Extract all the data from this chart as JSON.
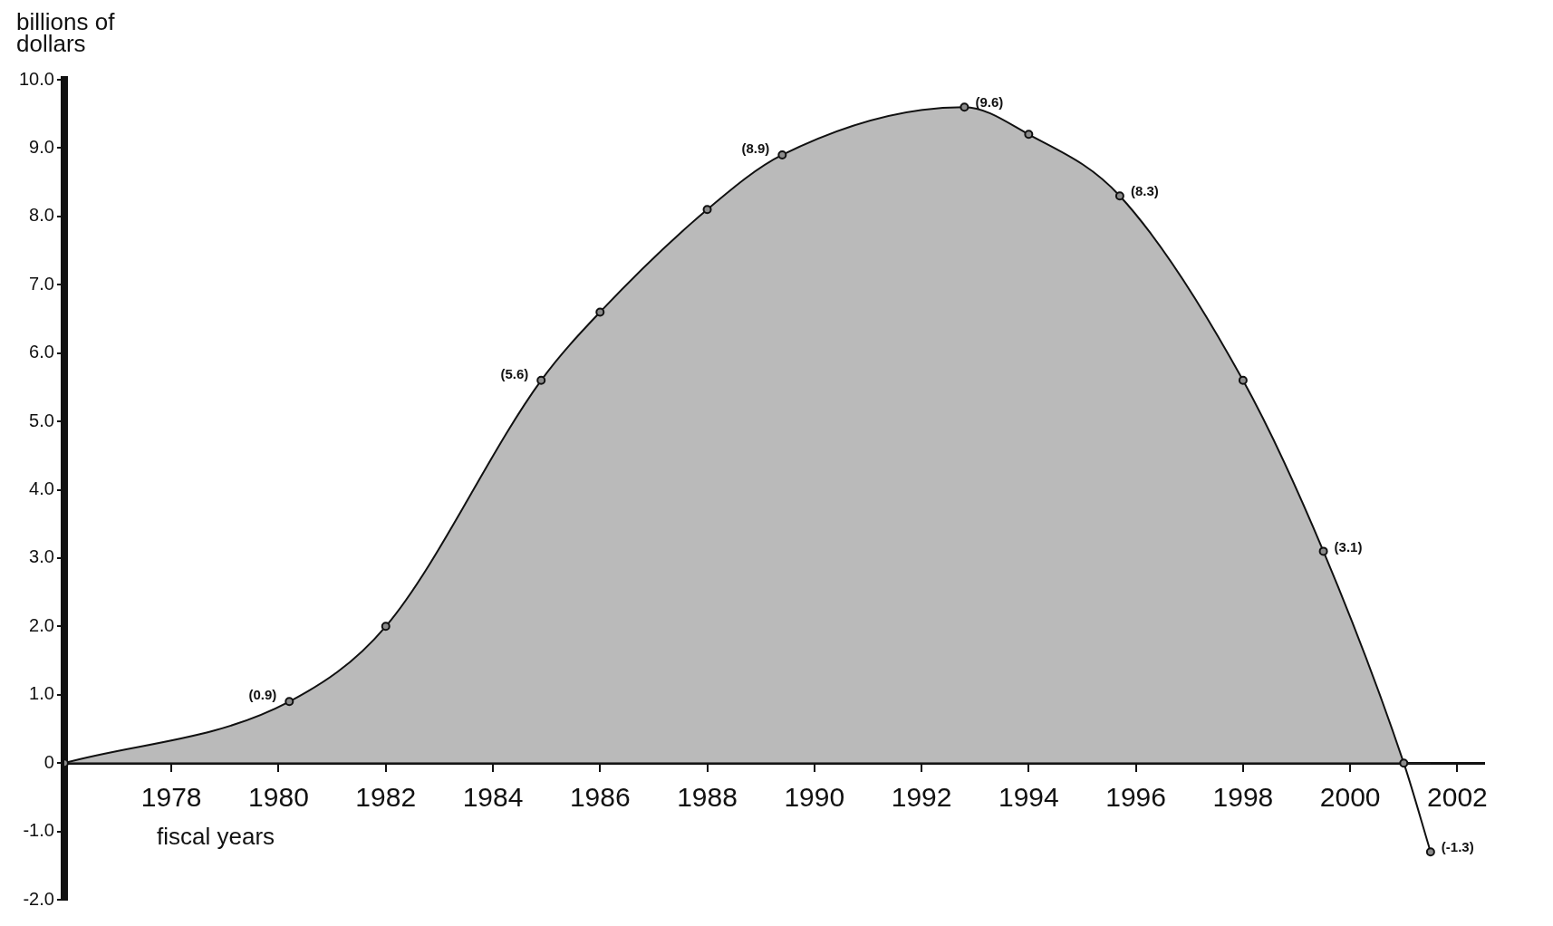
{
  "chart_data": {
    "type": "area",
    "ylabel": "billions of dollars",
    "xlabel": "fiscal years",
    "x": [
      1976,
      1980.2,
      1982,
      1984.9,
      1986,
      1988,
      1989.4,
      1992.8,
      1994,
      1995.7,
      1998,
      1999.5,
      2001,
      2001.5
    ],
    "series": [
      {
        "color": "#8c8c8c",
        "values": [
          0,
          0.9,
          2.0,
          5.6,
          6.6,
          8.1,
          8.9,
          9.6,
          9.2,
          8.3,
          5.6,
          3.1,
          0,
          -1.3
        ]
      }
    ],
    "value_labels": [
      null,
      "(0.9)",
      null,
      "(5.6)",
      null,
      null,
      "(8.9)",
      "(9.6)",
      null,
      "(8.3)",
      null,
      "(3.1)",
      null,
      "(-1.3)"
    ],
    "xlim": [
      1976,
      2002.5
    ],
    "xticks": [
      1978,
      1980,
      1982,
      1984,
      1986,
      1988,
      1990,
      1992,
      1994,
      1996,
      1998,
      2000,
      2002
    ],
    "ylim": [
      -2,
      10
    ],
    "yticks": [
      {
        "value": 10,
        "label": "10.0"
      },
      {
        "value": 9,
        "label": "9.0"
      },
      {
        "value": 8,
        "label": "8.0"
      },
      {
        "value": 7,
        "label": "7.0"
      },
      {
        "value": 6,
        "label": "6.0"
      },
      {
        "value": 5,
        "label": "5.0"
      },
      {
        "value": 4,
        "label": "4.0"
      },
      {
        "value": 3,
        "label": "3.0"
      },
      {
        "value": 2,
        "label": "2.0"
      },
      {
        "value": 1,
        "label": "1.0"
      },
      0,
      {
        "value": -1,
        "label": "-1.0"
      },
      {
        "value": -2,
        "label": "-2.0"
      }
    ],
    "marker": "circle",
    "line_style": "solid",
    "grid": false,
    "legend": false
  }
}
